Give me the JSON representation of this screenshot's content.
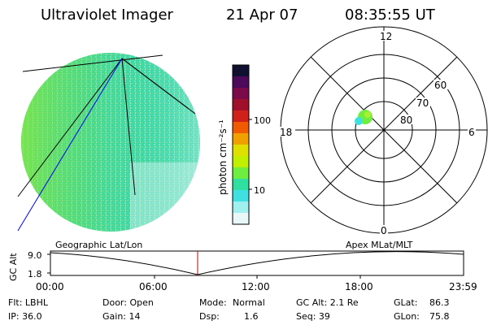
{
  "header": {
    "instrument": "Ultraviolet Imager",
    "date": "21 Apr 07",
    "time": "08:35:55 UT"
  },
  "colorbar": {
    "label": "photon cm⁻²s⁻¹",
    "ticks": [
      "100",
      "10"
    ],
    "colors": [
      "#101030",
      "#4b0a5a",
      "#7a0a4a",
      "#a0102a",
      "#d0201a",
      "#f05a00",
      "#f0a000",
      "#e0e000",
      "#c0f000",
      "#70ee40",
      "#30e0a0",
      "#40e0e0",
      "#a0f0f0",
      "#e8f8f8"
    ]
  },
  "polar": {
    "labels": [
      "12",
      "18",
      "6",
      "0",
      "60",
      "70",
      "80"
    ]
  },
  "timeline": {
    "left_label": "Geographic Lat/Lon",
    "right_label": "Apex  MLat/MLT",
    "axis_label": "GC Alt",
    "yticks": [
      "9.0",
      "1.8"
    ],
    "xticks": [
      "00:00",
      "06:00",
      "12:00",
      "18:00",
      "23:59"
    ]
  },
  "info": {
    "filter": "Flt: LBHL",
    "ip": "IP: 36.0",
    "door": "Door: Open",
    "gain": "Gain: 14",
    "mode_label": "Mode:",
    "mode_value": "Normal",
    "dsp_label": "Dsp:",
    "dsp_value": "1.6",
    "gcalt": "GC Alt: 2.1 Re",
    "seq": "Seq: 39",
    "glat_label": "GLat:",
    "glat_value": "86.3",
    "glon_label": "GLon:",
    "glon_value": "75.8"
  }
}
